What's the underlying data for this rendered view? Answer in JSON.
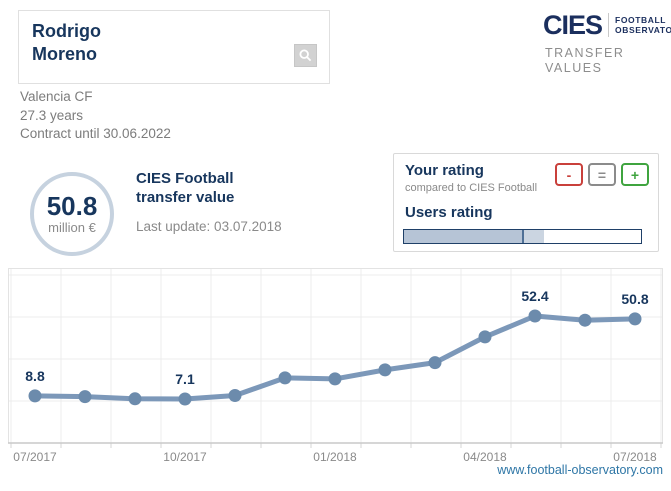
{
  "header": {
    "player_first": "Rodrigo",
    "player_last": "Moreno"
  },
  "logo": {
    "brand": "CIES",
    "sub_line1": "FOOTBALL",
    "sub_line2": "OBSERVATORY",
    "tagline_line1": "TRANSFER",
    "tagline_line2": "VALUES"
  },
  "player_info": {
    "club": "Valencia CF",
    "age": "27.3 years",
    "contract": "Contract until 30.06.2022"
  },
  "value_badge": {
    "value": "50.8",
    "unit": "million €"
  },
  "value_label": {
    "line1": "CIES Football",
    "line2": "transfer value",
    "last_update": "Last update: 03.07.2018"
  },
  "rating_box": {
    "title": "Your rating",
    "subtitle": "compared to CIES Football",
    "buttons": [
      {
        "label": "-",
        "color": "#c9403b"
      },
      {
        "label": "=",
        "color": "#8b8b8b"
      },
      {
        "label": "+",
        "color": "#3fa43f"
      }
    ],
    "users_rating_title": "Users rating",
    "users_rating": {
      "fill_percent": 50,
      "marker_percent": 50,
      "secondary_fill_percent": 59
    }
  },
  "footer": {
    "link": "www.football-observatory.com"
  },
  "colors": {
    "navy": "#17365d",
    "line": "#7c98b9",
    "dot": "#6c8bac",
    "circle_border": "#c6d2df",
    "link": "#2e76a6"
  },
  "chart_data": {
    "type": "line",
    "x": [
      "07/2017",
      "08/2017",
      "09/2017",
      "10/2017",
      "11/2017",
      "12/2017",
      "01/2018",
      "02/2018",
      "03/2018",
      "04/2018",
      "05/2018",
      "06/2018",
      "07/2018"
    ],
    "values": [
      8.8,
      8.4,
      7.2,
      7.1,
      9.0,
      18.6,
      18.1,
      23.0,
      27.0,
      41.0,
      52.4,
      50.1,
      50.8
    ],
    "point_labels": [
      {
        "index": 0,
        "text": "8.8"
      },
      {
        "index": 3,
        "text": "7.1"
      },
      {
        "index": 10,
        "text": "52.4"
      },
      {
        "index": 12,
        "text": "50.8"
      }
    ],
    "x_tick_indices": [
      0,
      3,
      6,
      9,
      12
    ],
    "ylim": [
      -16.9,
      78.6
    ],
    "grid": true,
    "legend": false,
    "title": "",
    "xlabel": "",
    "ylabel": "",
    "unit": "million €",
    "line_color": "#7c98b9"
  }
}
